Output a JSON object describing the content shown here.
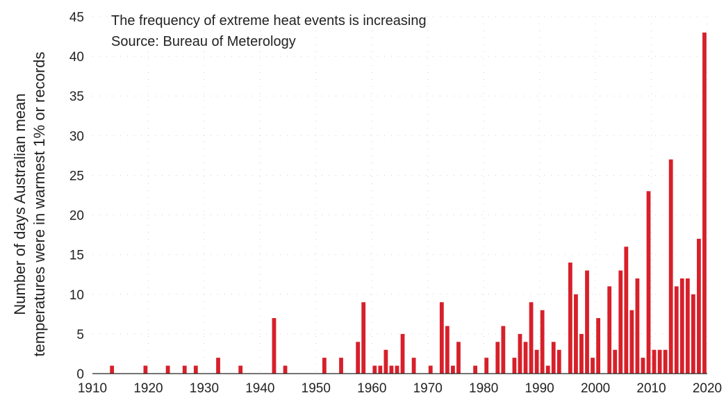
{
  "chart_data": {
    "type": "bar",
    "annotations": [
      "The frequency of extreme heat events is increasing",
      "Source: Bureau of Meterology"
    ],
    "ylabel_lines": [
      "Number of days Australian mean",
      "temperatures were in warmest 1% or records"
    ],
    "xlabel": "",
    "xlim": [
      1910,
      2020
    ],
    "ylim": [
      0,
      45
    ],
    "x_ticks": [
      1910,
      1920,
      1930,
      1940,
      1950,
      1960,
      1970,
      1980,
      1990,
      2000,
      2010,
      2020
    ],
    "y_ticks": [
      0,
      5,
      10,
      15,
      20,
      25,
      30,
      35,
      40,
      45
    ],
    "grid": true,
    "bar_color": "#d7202a",
    "x": [
      1913,
      1919,
      1923,
      1926,
      1928,
      1932,
      1936,
      1942,
      1944,
      1951,
      1954,
      1957,
      1958,
      1960,
      1961,
      1962,
      1963,
      1964,
      1965,
      1967,
      1970,
      1972,
      1973,
      1974,
      1975,
      1978,
      1980,
      1982,
      1983,
      1985,
      1986,
      1987,
      1988,
      1989,
      1990,
      1991,
      1992,
      1993,
      1995,
      1996,
      1997,
      1998,
      1999,
      2000,
      2002,
      2003,
      2004,
      2005,
      2006,
      2007,
      2008,
      2009,
      2010,
      2011,
      2012,
      2013,
      2014,
      2015,
      2016,
      2017,
      2018,
      2019
    ],
    "values": [
      1,
      1,
      1,
      1,
      1,
      2,
      1,
      7,
      1,
      2,
      2,
      4,
      9,
      1,
      1,
      3,
      1,
      1,
      5,
      2,
      1,
      9,
      6,
      1,
      4,
      1,
      2,
      4,
      6,
      2,
      5,
      4,
      9,
      3,
      8,
      1,
      4,
      3,
      14,
      10,
      5,
      13,
      2,
      7,
      11,
      3,
      13,
      16,
      8,
      12,
      2,
      23,
      3,
      3,
      3,
      27,
      11,
      12,
      12,
      10,
      17,
      43
    ]
  }
}
